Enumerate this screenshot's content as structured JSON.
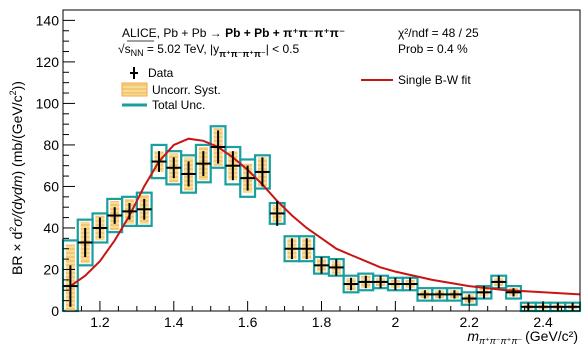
{
  "chart_data": {
    "type": "scatter",
    "title": "",
    "xlabel": {
      "main": "m",
      "sub": "π⁺π⁻π⁺π⁻",
      "unit": "(GeV/c²)"
    },
    "ylabel": {
      "prefix": "BR × d",
      "sup": "2",
      "mid": "σ/(dy",
      "dm": "dm",
      "unit": ") (mb/(GeV/c",
      "unit_sup": "2",
      "end": "))"
    },
    "xlim": [
      1.1,
      2.5
    ],
    "ylim": [
      0,
      145
    ],
    "x_ticks": [
      1.2,
      1.4,
      1.6,
      1.8,
      2,
      2.2,
      2.4
    ],
    "x_tick_labels": [
      "1.2",
      "1.4",
      "1.6",
      "1.8",
      "2",
      "2.2",
      "2.4"
    ],
    "y_ticks": [
      0,
      20,
      40,
      60,
      80,
      100,
      120,
      140
    ],
    "y_tick_labels": [
      "0",
      "20",
      "40",
      "60",
      "80",
      "100",
      "120",
      "140"
    ],
    "annotations": {
      "line1_a": "ALICE, Pb + Pb",
      "line1_arrow": " → ",
      "line1_b": "Pb + Pb + π⁺π⁻π⁺π⁻",
      "line2_a": "√s",
      "line2_sub": "NN",
      "line2_b": " = 5.02 TeV, |y",
      "line2_sub2": "π⁺π⁻π⁺π⁻",
      "line2_c": "| < 0.5",
      "chi2": "χ²/ndf = 48 / 25",
      "prob": "Prob = 0.4 %"
    },
    "legend": {
      "placement": "top-left",
      "entries": [
        "Data",
        "Uncorr. Syst.",
        "Total Unc."
      ],
      "fit_label": "Single B-W fit",
      "fit_placement": "top-right"
    },
    "colors": {
      "data": "#000000",
      "uncorr_fill": "#f7dc93",
      "uncorr_hatch": "#f0a848",
      "total_unc": "#1a9e9e",
      "fit": "#c81414"
    },
    "bin_width": 0.04,
    "series": [
      {
        "name": "Data",
        "x": [
          1.12,
          1.16,
          1.2,
          1.24,
          1.28,
          1.32,
          1.36,
          1.4,
          1.44,
          1.48,
          1.52,
          1.56,
          1.6,
          1.64,
          1.68,
          1.72,
          1.76,
          1.8,
          1.84,
          1.88,
          1.92,
          1.96,
          2.0,
          2.04,
          2.08,
          2.12,
          2.16,
          2.2,
          2.24,
          2.28,
          2.32,
          2.36,
          2.4,
          2.44,
          2.48
        ],
        "y": [
          12,
          33,
          40,
          46,
          48,
          49,
          72,
          69,
          66,
          71,
          79,
          70,
          64,
          67,
          47,
          30,
          30,
          22,
          21,
          13,
          14,
          14,
          13,
          13,
          8,
          8,
          8,
          6,
          9,
          14,
          9,
          2,
          2,
          2,
          2
        ],
        "stat_err": [
          10,
          7,
          5,
          4,
          4,
          5,
          5,
          5,
          6,
          6,
          8,
          7,
          6,
          7,
          6,
          5,
          5,
          4,
          4,
          3,
          3,
          3,
          3,
          3,
          2,
          2,
          2,
          2,
          3,
          3,
          2,
          2,
          2,
          2,
          2
        ],
        "uncorr_syst": [
          20,
          10,
          6,
          7,
          6,
          7,
          5,
          7,
          8,
          8,
          9,
          7,
          7,
          7,
          4,
          5,
          5,
          3,
          3,
          3,
          3,
          2,
          2,
          2,
          2,
          2,
          2,
          2,
          2,
          2,
          2,
          1,
          1,
          1,
          1
        ],
        "total_unc": [
          22,
          11,
          7,
          8,
          7,
          8,
          8,
          8,
          9,
          9,
          10,
          9,
          9,
          8,
          5,
          6,
          6,
          4,
          4,
          4,
          4,
          3,
          3,
          3,
          3,
          3,
          3,
          3,
          3,
          3,
          3,
          2,
          2,
          2,
          2
        ]
      },
      {
        "name": "Single B-W fit",
        "type": "line",
        "x": [
          1.12,
          1.16,
          1.2,
          1.24,
          1.28,
          1.32,
          1.36,
          1.4,
          1.44,
          1.48,
          1.52,
          1.56,
          1.6,
          1.64,
          1.68,
          1.72,
          1.76,
          1.8,
          1.84,
          1.88,
          1.92,
          1.96,
          2.0,
          2.1,
          2.2,
          2.3,
          2.4,
          2.5
        ],
        "y": [
          12,
          17,
          24,
          34,
          46,
          60,
          72,
          80,
          83,
          82,
          79,
          74,
          68,
          61,
          53,
          46,
          40,
          35,
          30,
          27,
          24,
          21,
          19,
          15,
          12,
          10,
          9,
          8
        ]
      }
    ]
  }
}
